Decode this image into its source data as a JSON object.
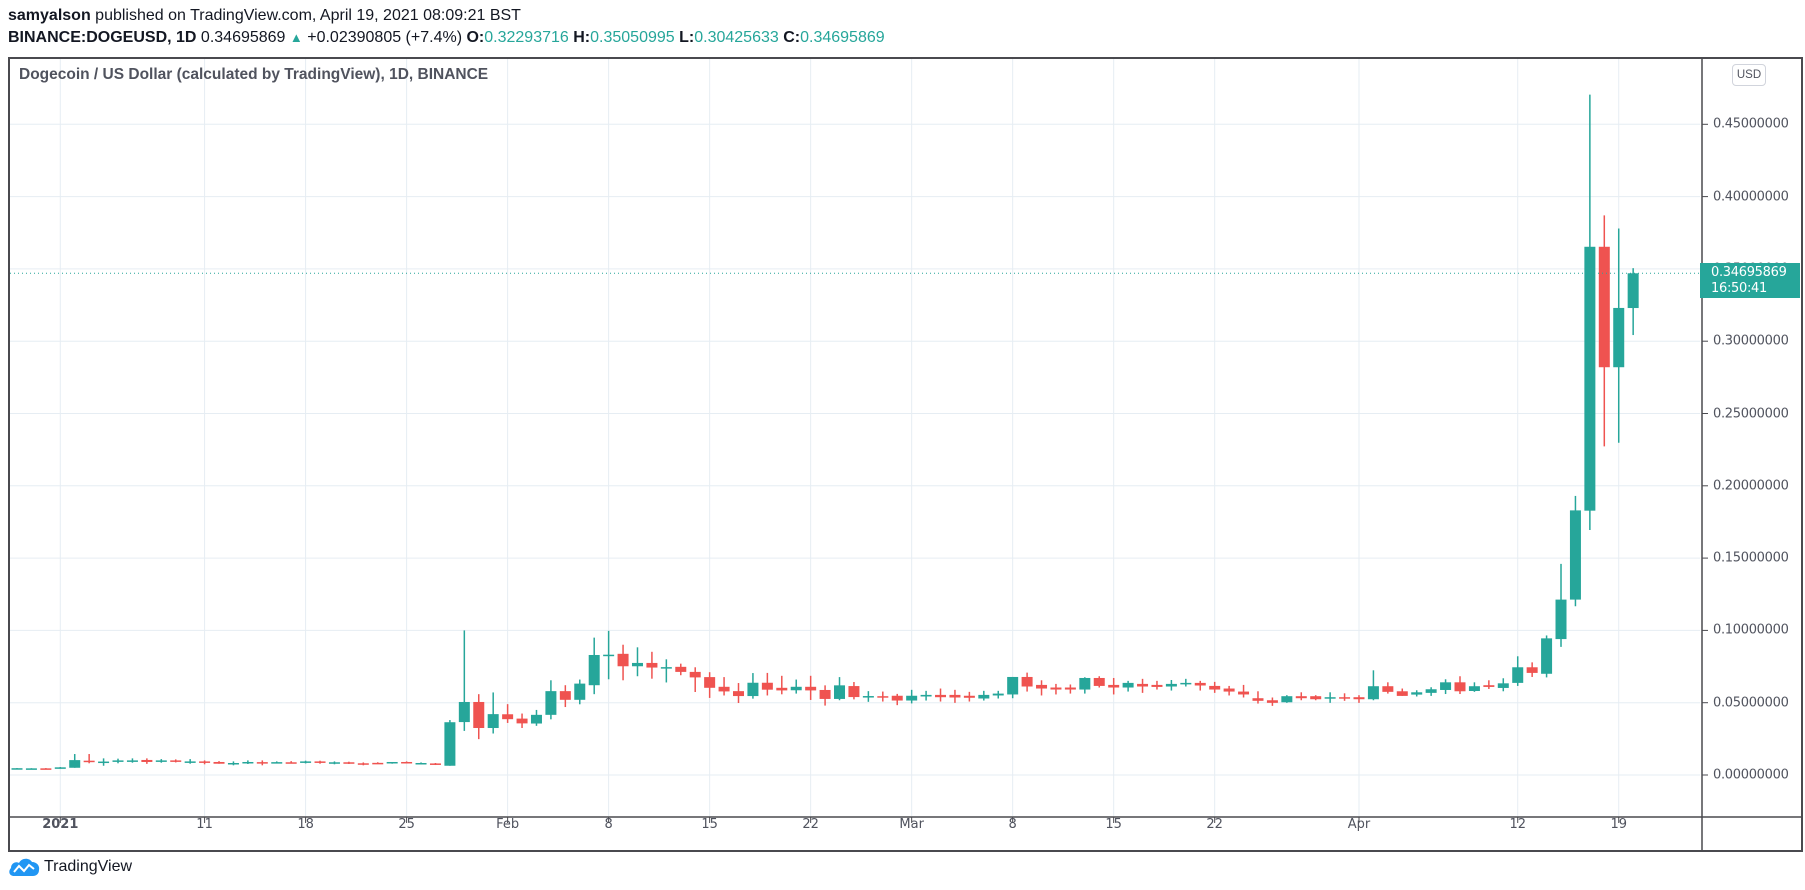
{
  "header": {
    "author": "samyalson",
    "published_text": "published on TradingView.com, April 19, 2021 08:09:21 BST",
    "symbol": "BINANCE:DOGEUSD, 1D",
    "last_price": "0.34695869",
    "change_icon": "triangle-up-icon",
    "change": "+0.02390805 (+7.4%)",
    "o_label": "O:",
    "o_value": "0.32293716",
    "h_label": "H:",
    "h_value": "0.35050995",
    "l_label": "L:",
    "l_value": "0.30425633",
    "c_label": "C:",
    "c_value": "0.34695869"
  },
  "legend": {
    "title": "Dogecoin / US Dollar (calculated by TradingView), 1D, BINANCE"
  },
  "price_axis": {
    "currency": "USD",
    "labels": [
      "0.45000000",
      "0.40000000",
      "0.35000000",
      "0.30000000",
      "0.25000000",
      "0.20000000",
      "0.15000000",
      "0.10000000",
      "0.05000000",
      "0.00000000"
    ],
    "last_price_label": "0.34695869",
    "countdown": "16:50:41"
  },
  "time_axis": {
    "labels": [
      "2021",
      "11",
      "18",
      "25",
      "Feb",
      "8",
      "15",
      "22",
      "Mar",
      "8",
      "15",
      "22",
      "Apr",
      "12",
      "19"
    ]
  },
  "footer": {
    "brand": "TradingView",
    "logo_icon": "tradingview-cloud-icon"
  },
  "colors": {
    "up": "#26a69a",
    "down": "#ef5350",
    "grid": "#e6edf3",
    "axis_text": "#50535e",
    "frame": "#4a4a4f"
  },
  "chart_data": {
    "type": "candlestick",
    "title": "Dogecoin / US Dollar (calculated by TradingView), 1D, BINANCE",
    "xlabel": "",
    "ylabel": "USD",
    "ylim": [
      -0.02,
      0.49
    ],
    "grid": true,
    "x_ticks": [
      "2021",
      "11",
      "18",
      "25",
      "Feb",
      "8",
      "15",
      "22",
      "Mar",
      "8",
      "15",
      "22",
      "Apr",
      "12",
      "19"
    ],
    "y_ticks": [
      0.0,
      0.05,
      0.1,
      0.15,
      0.2,
      0.25,
      0.3,
      0.35,
      0.4,
      0.45
    ],
    "start_date": "2020-12-29",
    "end_date": "2021-04-19",
    "ohlc_fields": [
      "open",
      "high",
      "low",
      "close"
    ],
    "ohlc": [
      [
        0.0046,
        0.0048,
        0.0043,
        0.0047
      ],
      [
        0.0039,
        0.0047,
        0.0038,
        0.0046
      ],
      [
        0.0046,
        0.0048,
        0.0039,
        0.0041
      ],
      [
        0.0046,
        0.0055,
        0.0044,
        0.0053
      ],
      [
        0.005,
        0.0145,
        0.005,
        0.0103
      ],
      [
        0.0099,
        0.0145,
        0.0081,
        0.009
      ],
      [
        0.0092,
        0.0115,
        0.0064,
        0.0093
      ],
      [
        0.0092,
        0.0113,
        0.0081,
        0.0101
      ],
      [
        0.0092,
        0.0115,
        0.0085,
        0.0101
      ],
      [
        0.0104,
        0.0115,
        0.0077,
        0.009
      ],
      [
        0.0095,
        0.011,
        0.0085,
        0.0101
      ],
      [
        0.0101,
        0.0108,
        0.0087,
        0.0092
      ],
      [
        0.0094,
        0.011,
        0.0078,
        0.0094
      ],
      [
        0.0094,
        0.0101,
        0.0074,
        0.0085
      ],
      [
        0.009,
        0.0096,
        0.0078,
        0.0078
      ],
      [
        0.0073,
        0.0094,
        0.0067,
        0.0083
      ],
      [
        0.008,
        0.0101,
        0.0076,
        0.009
      ],
      [
        0.0089,
        0.0101,
        0.0067,
        0.0088
      ],
      [
        0.0088,
        0.0094,
        0.0082,
        0.0089
      ],
      [
        0.0088,
        0.0096,
        0.008,
        0.0087
      ],
      [
        0.0085,
        0.0099,
        0.008,
        0.0094
      ],
      [
        0.0094,
        0.0099,
        0.0078,
        0.0085
      ],
      [
        0.0087,
        0.0094,
        0.0074,
        0.0088
      ],
      [
        0.0088,
        0.0092,
        0.0076,
        0.0078
      ],
      [
        0.0081,
        0.0087,
        0.0067,
        0.008
      ],
      [
        0.0084,
        0.0088,
        0.0076,
        0.0083
      ],
      [
        0.008,
        0.009,
        0.0078,
        0.009
      ],
      [
        0.009,
        0.0094,
        0.008,
        0.008
      ],
      [
        0.0082,
        0.0087,
        0.0078,
        0.0083
      ],
      [
        0.008,
        0.0083,
        0.0069,
        0.0071
      ],
      [
        0.0064,
        0.038,
        0.0064,
        0.0365
      ],
      [
        0.0366,
        0.1,
        0.0305,
        0.0505
      ],
      [
        0.0505,
        0.0559,
        0.0248,
        0.0325
      ],
      [
        0.0325,
        0.0571,
        0.0287,
        0.0421
      ],
      [
        0.042,
        0.049,
        0.036,
        0.0386
      ],
      [
        0.039,
        0.0425,
        0.0325,
        0.0357
      ],
      [
        0.0356,
        0.045,
        0.034,
        0.0416
      ],
      [
        0.0416,
        0.0655,
        0.0385,
        0.058
      ],
      [
        0.058,
        0.0621,
        0.047,
        0.052
      ],
      [
        0.052,
        0.066,
        0.0489,
        0.0632
      ],
      [
        0.0621,
        0.095,
        0.0559,
        0.083
      ],
      [
        0.0828,
        0.0997,
        0.0662,
        0.0832
      ],
      [
        0.0838,
        0.0901,
        0.0655,
        0.0752
      ],
      [
        0.0752,
        0.0883,
        0.0683,
        0.0775
      ],
      [
        0.0775,
        0.0852,
        0.0666,
        0.0743
      ],
      [
        0.0744,
        0.08,
        0.064,
        0.0746
      ],
      [
        0.0748,
        0.077,
        0.069,
        0.0713
      ],
      [
        0.0713,
        0.0745,
        0.0574,
        0.0675
      ],
      [
        0.0677,
        0.0711,
        0.0533,
        0.0603
      ],
      [
        0.061,
        0.0677,
        0.055,
        0.0578
      ],
      [
        0.058,
        0.0636,
        0.0498,
        0.0546
      ],
      [
        0.0546,
        0.0705,
        0.0528,
        0.0638
      ],
      [
        0.0638,
        0.0706,
        0.055,
        0.059
      ],
      [
        0.0603,
        0.0686,
        0.0558,
        0.0585
      ],
      [
        0.0586,
        0.066,
        0.0563,
        0.061
      ],
      [
        0.061,
        0.0686,
        0.0519,
        0.0585
      ],
      [
        0.0588,
        0.062,
        0.048,
        0.0526
      ],
      [
        0.0526,
        0.0677,
        0.0517,
        0.062
      ],
      [
        0.0615,
        0.0643,
        0.0523,
        0.0539
      ],
      [
        0.0543,
        0.058,
        0.0506,
        0.0546
      ],
      [
        0.0545,
        0.0577,
        0.0508,
        0.054
      ],
      [
        0.0548,
        0.0561,
        0.0483,
        0.0515
      ],
      [
        0.0515,
        0.0589,
        0.0495,
        0.0548
      ],
      [
        0.0543,
        0.0582,
        0.0515,
        0.0554
      ],
      [
        0.0554,
        0.0598,
        0.0508,
        0.0538
      ],
      [
        0.0554,
        0.0589,
        0.0499,
        0.0536
      ],
      [
        0.0548,
        0.0575,
        0.0508,
        0.0534
      ],
      [
        0.0529,
        0.0582,
        0.0515,
        0.0554
      ],
      [
        0.055,
        0.0582,
        0.0529,
        0.0563
      ],
      [
        0.0557,
        0.0678,
        0.0531,
        0.0678
      ],
      [
        0.0678,
        0.0708,
        0.0577,
        0.0612
      ],
      [
        0.0623,
        0.0655,
        0.055,
        0.0598
      ],
      [
        0.0605,
        0.063,
        0.0557,
        0.0591
      ],
      [
        0.0605,
        0.0626,
        0.0563,
        0.0591
      ],
      [
        0.0591,
        0.0676,
        0.0563,
        0.0671
      ],
      [
        0.0671,
        0.0683,
        0.0605,
        0.0616
      ],
      [
        0.0623,
        0.0671,
        0.0557,
        0.0605
      ],
      [
        0.0605,
        0.0651,
        0.0577,
        0.0637
      ],
      [
        0.063,
        0.0665,
        0.0568,
        0.0612
      ],
      [
        0.0623,
        0.0651,
        0.0591,
        0.0609
      ],
      [
        0.0612,
        0.0657,
        0.0584,
        0.063
      ],
      [
        0.0628,
        0.0665,
        0.0612,
        0.0637
      ],
      [
        0.0637,
        0.0651,
        0.0584,
        0.0619
      ],
      [
        0.0616,
        0.0644,
        0.0568,
        0.0591
      ],
      [
        0.0598,
        0.0616,
        0.055,
        0.0577
      ],
      [
        0.0577,
        0.0623,
        0.0536,
        0.0557
      ],
      [
        0.0531,
        0.0579,
        0.0494,
        0.0513
      ],
      [
        0.0517,
        0.0536,
        0.0478,
        0.0499
      ],
      [
        0.0503,
        0.0552,
        0.0499,
        0.0545
      ],
      [
        0.0545,
        0.0572,
        0.0517,
        0.0531
      ],
      [
        0.0545,
        0.0552,
        0.0517,
        0.0524
      ],
      [
        0.0534,
        0.0572,
        0.0499,
        0.0538
      ],
      [
        0.0538,
        0.0565,
        0.0513,
        0.0533
      ],
      [
        0.0538,
        0.0552,
        0.0499,
        0.0524
      ],
      [
        0.0524,
        0.0724,
        0.0517,
        0.0614
      ],
      [
        0.0614,
        0.0641,
        0.0563,
        0.0575
      ],
      [
        0.0579,
        0.0598,
        0.0547,
        0.0547
      ],
      [
        0.0556,
        0.0586,
        0.0543,
        0.0572
      ],
      [
        0.0568,
        0.0607,
        0.0547,
        0.0593
      ],
      [
        0.0588,
        0.0662,
        0.056,
        0.0641
      ],
      [
        0.0641,
        0.0683,
        0.056,
        0.0579
      ],
      [
        0.0581,
        0.0641,
        0.0575,
        0.0614
      ],
      [
        0.0621,
        0.0655,
        0.0595,
        0.0609
      ],
      [
        0.0602,
        0.0669,
        0.0579,
        0.0634
      ],
      [
        0.0637,
        0.0821,
        0.0616,
        0.0745
      ],
      [
        0.0745,
        0.0779,
        0.0678,
        0.0706
      ],
      [
        0.07,
        0.0965,
        0.0675,
        0.0945
      ],
      [
        0.094,
        0.146,
        0.0886,
        0.1213
      ],
      [
        0.1213,
        0.193,
        0.1167,
        0.183
      ],
      [
        0.1828,
        0.4705,
        0.1694,
        0.3653
      ],
      [
        0.3653,
        0.387,
        0.2273,
        0.282
      ],
      [
        0.282,
        0.3779,
        0.2298,
        0.323
      ],
      [
        0.32293716,
        0.35050995,
        0.30425633,
        0.34695869
      ]
    ]
  }
}
